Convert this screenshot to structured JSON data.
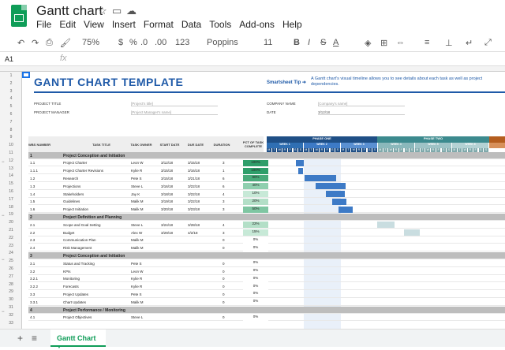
{
  "app": {
    "title": "Gantt chart",
    "menu": [
      "File",
      "Edit",
      "View",
      "Insert",
      "Format",
      "Data",
      "Tools",
      "Add-ons",
      "Help"
    ]
  },
  "toolbar": {
    "zoom": "75%",
    "currency": "$",
    "percent": "%",
    "decimals": ".0",
    ".00": ".00",
    "number_format": "123",
    "font": "Poppins",
    "size": "11"
  },
  "formula": {
    "cell_ref": "A1",
    "fx": "fx"
  },
  "sheet": {
    "title": "GANTT CHART TEMPLATE",
    "tip_label": "Smartsheet Tip ➜",
    "tip_text": "A Gantt chart's visual timeline allows you to see details about each task as well as project dependencies.",
    "project_title_label": "PROJECT TITLE",
    "project_title_value": "[Project's title]",
    "project_manager_label": "PROJECT MANAGER",
    "project_manager_value": "[Project Manager's name]",
    "company_label": "COMPANY NAME",
    "company_value": "[Company's name]",
    "date_label": "DATE",
    "date_value": "3/12/18",
    "headers": [
      "WBS NUMBER",
      "TASK TITLE",
      "TASK OWNER",
      "START DATE",
      "DUE DATE",
      "DURATION",
      "PCT OF TASK COMPLETE"
    ],
    "phases": [
      "PHASE ONE",
      "PHASE TWO"
    ],
    "weeks": [
      "WEEK 1",
      "WEEK 2",
      "WEEK 3",
      "WEEK 4",
      "WEEK 5",
      "WEEK 6"
    ],
    "days": [
      "M",
      "T",
      "W",
      "R",
      "F",
      "S",
      "S"
    ],
    "rows": [
      {
        "wbs": "1",
        "title": "Project Conception and Initiation",
        "sec": true
      },
      {
        "wbs": "1.1",
        "title": "Project Charter",
        "owner": "Leon W",
        "start": "3/12/18",
        "due": "3/15/18",
        "dur": "3",
        "pct": "100%"
      },
      {
        "wbs": "1.1.1",
        "title": "Project Charter Revisions",
        "owner": "Kylie R",
        "start": "3/15/18",
        "due": "3/16/18",
        "dur": "1",
        "pct": "100%"
      },
      {
        "wbs": "1.2",
        "title": "Research",
        "owner": "Pete S",
        "start": "3/15/18",
        "due": "3/21/18",
        "dur": "6",
        "pct": "90%"
      },
      {
        "wbs": "1.3",
        "title": "Projections",
        "owner": "Steve L",
        "start": "3/16/18",
        "due": "3/22/18",
        "dur": "6",
        "pct": "40%"
      },
      {
        "wbs": "1.4",
        "title": "Stakeholders",
        "owner": "Jay K",
        "start": "3/18/18",
        "due": "3/22/18",
        "dur": "4",
        "pct": "10%"
      },
      {
        "wbs": "1.5",
        "title": "Guidelines",
        "owner": "Malik M",
        "start": "3/19/18",
        "due": "3/22/18",
        "dur": "3",
        "pct": "20%"
      },
      {
        "wbs": "1.6",
        "title": "Project Initiation",
        "owner": "Malik M",
        "start": "3/20/18",
        "due": "3/23/18",
        "dur": "3",
        "pct": "50%"
      },
      {
        "wbs": "2",
        "title": "Project Definition and Planning",
        "sec": true
      },
      {
        "wbs": "2.1",
        "title": "Scope and Goal Setting",
        "owner": "Steve L",
        "start": "3/24/18",
        "due": "3/28/18",
        "dur": "4",
        "pct": "22%"
      },
      {
        "wbs": "2.2",
        "title": "Budget",
        "owner": "Alex W",
        "start": "3/29/18",
        "due": "4/2/18",
        "dur": "3",
        "pct": "15%"
      },
      {
        "wbs": "2.3",
        "title": "Communication Plan",
        "owner": "Malik M",
        "start": "",
        "due": "",
        "dur": "0",
        "pct": "0%"
      },
      {
        "wbs": "2.4",
        "title": "Risk Management",
        "owner": "Malik M",
        "start": "",
        "due": "",
        "dur": "0",
        "pct": "0%"
      },
      {
        "wbs": "3",
        "title": "Project Conception and Initiation",
        "sec": true
      },
      {
        "wbs": "3.1",
        "title": "Status and Tracking",
        "owner": "Pete S",
        "start": "",
        "due": "",
        "dur": "0",
        "pct": "0%"
      },
      {
        "wbs": "3.2",
        "title": "KPIs",
        "owner": "Leon W",
        "start": "",
        "due": "",
        "dur": "0",
        "pct": "0%"
      },
      {
        "wbs": "3.2.1",
        "title": "Monitoring",
        "owner": "Kylie R",
        "start": "",
        "due": "",
        "dur": "0",
        "pct": "0%"
      },
      {
        "wbs": "3.2.2",
        "title": "Forecasts",
        "owner": "Kylie R",
        "start": "",
        "due": "",
        "dur": "0",
        "pct": "0%"
      },
      {
        "wbs": "3.3",
        "title": "Project Updates",
        "owner": "Pete S",
        "start": "",
        "due": "",
        "dur": "0",
        "pct": "0%"
      },
      {
        "wbs": "3.3.1",
        "title": "Chart Updates",
        "owner": "Malik M",
        "start": "",
        "due": "",
        "dur": "0",
        "pct": "0%"
      },
      {
        "wbs": "4",
        "title": "Project Performance / Monitoring",
        "sec": true
      },
      {
        "wbs": "4.1",
        "title": "Project Objectives",
        "owner": "Steve L",
        "start": "",
        "due": "",
        "dur": "0",
        "pct": "0%"
      }
    ]
  },
  "rownums": [
    "1",
    "2",
    "3",
    "4",
    "5",
    "6",
    "7",
    "8",
    "9",
    "10",
    "11",
    "12",
    "13",
    "14",
    "15",
    "16",
    "17",
    "18",
    "19",
    "20",
    "21",
    "22",
    "23",
    "24",
    "25",
    "26",
    "27",
    "28",
    "29",
    "30",
    "31",
    "32",
    "33"
  ],
  "sheet_tab": "Gantt Chart"
}
